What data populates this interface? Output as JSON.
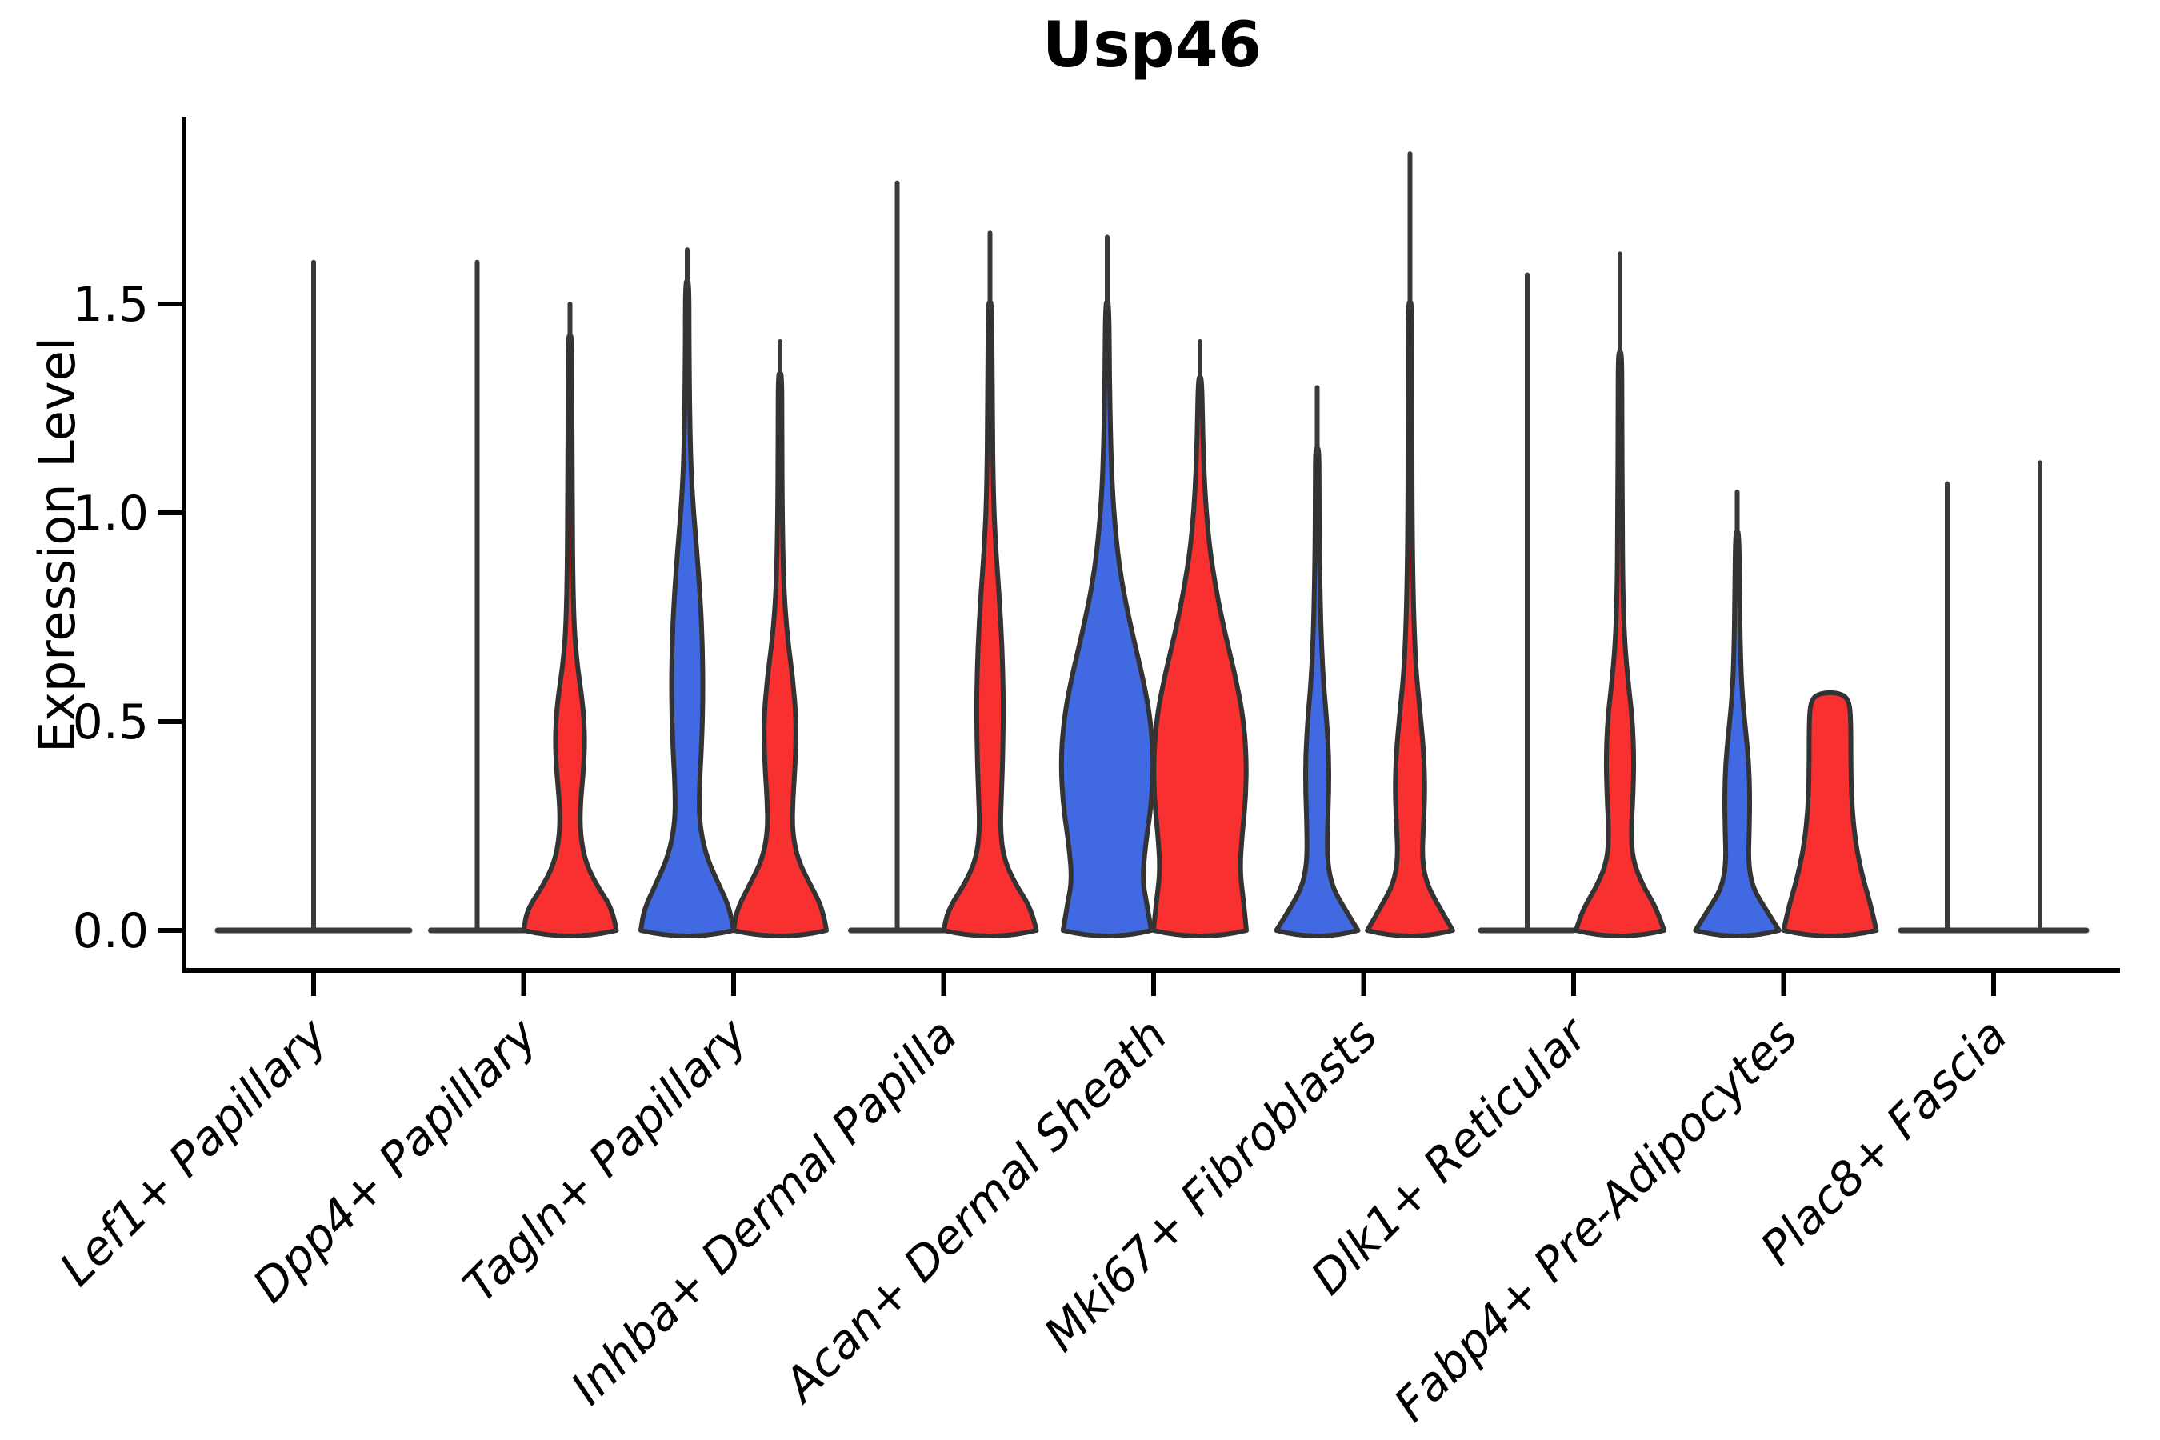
{
  "title": "Usp46",
  "ylabel": "Expression Level",
  "colors": {
    "blue": "#4169E1",
    "red": "#F93030",
    "outline": "#333333",
    "collapsed_line": "#3a3a3a",
    "axis": "#000000",
    "background": "#ffffff"
  },
  "chart_data": {
    "type": "violin",
    "title": "Usp46",
    "xlabel": "",
    "ylabel": "Expression Level",
    "ylim": [
      -0.1,
      1.95
    ],
    "yticks": [
      0.0,
      0.5,
      1.0,
      1.5
    ],
    "ytick_labels": [
      "0.0",
      "0.5",
      "1.0",
      "1.5"
    ],
    "grid": false,
    "legend": "none",
    "categories": [
      "Lef1+ Papillary",
      "Dpp4+ Papillary",
      "Tagln+ Papillary",
      "Inhba+ Dermal Papilla",
      "Acan+ Dermal Sheath",
      "Mki67+ Fibroblasts",
      "Dlk1+ Reticular",
      "Fabp4+ Pre-Adipocytes",
      "Plac8+ Fascia"
    ],
    "series_note": "two conditions per category shown as paired violins (blue = left violin, red = right violin); profile = [expression_value, relative_half_width]; max = top of vertical tail line",
    "groups": [
      {
        "label": "Lef1+ Papillary",
        "violins": [
          {
            "hue": "single",
            "collapsed": true,
            "wide": true,
            "max": 1.6
          }
        ]
      },
      {
        "label": "Dpp4+ Papillary",
        "violins": [
          {
            "hue": "blue",
            "collapsed": true,
            "max": 1.6
          },
          {
            "hue": "red",
            "max": 1.5,
            "profile": [
              [
                0,
                1.0
              ],
              [
                0.05,
                0.92
              ],
              [
                0.1,
                0.62
              ],
              [
                0.16,
                0.34
              ],
              [
                0.23,
                0.22
              ],
              [
                0.3,
                0.22
              ],
              [
                0.38,
                0.29
              ],
              [
                0.46,
                0.32
              ],
              [
                0.54,
                0.28
              ],
              [
                0.63,
                0.16
              ],
              [
                0.72,
                0.09
              ],
              [
                0.85,
                0.06
              ],
              [
                1.05,
                0.05
              ],
              [
                1.3,
                0.04
              ],
              [
                1.42,
                0.04
              ]
            ]
          }
        ]
      },
      {
        "label": "Tagln+ Papillary",
        "violins": [
          {
            "hue": "blue",
            "max": 1.63,
            "profile": [
              [
                0,
                1.0
              ],
              [
                0.05,
                0.93
              ],
              [
                0.11,
                0.68
              ],
              [
                0.18,
                0.4
              ],
              [
                0.26,
                0.26
              ],
              [
                0.34,
                0.26
              ],
              [
                0.44,
                0.31
              ],
              [
                0.56,
                0.34
              ],
              [
                0.68,
                0.33
              ],
              [
                0.8,
                0.28
              ],
              [
                0.92,
                0.2
              ],
              [
                1.04,
                0.11
              ],
              [
                1.18,
                0.06
              ],
              [
                1.4,
                0.04
              ],
              [
                1.55,
                0.04
              ]
            ]
          },
          {
            "hue": "red",
            "max": 1.41,
            "profile": [
              [
                0,
                1.0
              ],
              [
                0.05,
                0.93
              ],
              [
                0.11,
                0.65
              ],
              [
                0.17,
                0.38
              ],
              [
                0.24,
                0.26
              ],
              [
                0.32,
                0.28
              ],
              [
                0.4,
                0.33
              ],
              [
                0.5,
                0.35
              ],
              [
                0.6,
                0.28
              ],
              [
                0.7,
                0.16
              ],
              [
                0.82,
                0.08
              ],
              [
                0.98,
                0.05
              ],
              [
                1.2,
                0.04
              ],
              [
                1.33,
                0.04
              ]
            ]
          }
        ]
      },
      {
        "label": "Inhba+ Dermal Papilla",
        "violins": [
          {
            "hue": "blue",
            "collapsed": true,
            "max": 1.79
          },
          {
            "hue": "red",
            "max": 1.67,
            "profile": [
              [
                0,
                1.0
              ],
              [
                0.05,
                0.9
              ],
              [
                0.11,
                0.55
              ],
              [
                0.17,
                0.3
              ],
              [
                0.24,
                0.22
              ],
              [
                0.33,
                0.25
              ],
              [
                0.44,
                0.28
              ],
              [
                0.56,
                0.29
              ],
              [
                0.68,
                0.26
              ],
              [
                0.8,
                0.2
              ],
              [
                0.92,
                0.12
              ],
              [
                1.05,
                0.07
              ],
              [
                1.25,
                0.05
              ],
              [
                1.5,
                0.04
              ]
            ]
          }
        ]
      },
      {
        "label": "Acan+ Dermal Sheath",
        "violins": [
          {
            "hue": "blue",
            "max": 1.66,
            "profile": [
              [
                0,
                0.95
              ],
              [
                0.06,
                0.86
              ],
              [
                0.12,
                0.76
              ],
              [
                0.2,
                0.82
              ],
              [
                0.3,
                0.95
              ],
              [
                0.4,
                1.0
              ],
              [
                0.5,
                0.94
              ],
              [
                0.6,
                0.78
              ],
              [
                0.72,
                0.52
              ],
              [
                0.84,
                0.3
              ],
              [
                0.96,
                0.17
              ],
              [
                1.1,
                0.09
              ],
              [
                1.3,
                0.05
              ],
              [
                1.5,
                0.04
              ]
            ]
          },
          {
            "hue": "red",
            "max": 1.41,
            "profile": [
              [
                0,
                1.0
              ],
              [
                0.07,
                0.94
              ],
              [
                0.14,
                0.86
              ],
              [
                0.22,
                0.9
              ],
              [
                0.32,
                0.99
              ],
              [
                0.42,
                1.0
              ],
              [
                0.52,
                0.92
              ],
              [
                0.62,
                0.74
              ],
              [
                0.72,
                0.52
              ],
              [
                0.82,
                0.34
              ],
              [
                0.92,
                0.2
              ],
              [
                1.04,
                0.11
              ],
              [
                1.18,
                0.06
              ],
              [
                1.32,
                0.04
              ]
            ]
          }
        ]
      },
      {
        "label": "Mki67+ Fibroblasts",
        "violins": [
          {
            "hue": "blue",
            "max": 1.3,
            "profile": [
              [
                0,
                0.88
              ],
              [
                0.05,
                0.6
              ],
              [
                0.1,
                0.34
              ],
              [
                0.16,
                0.22
              ],
              [
                0.24,
                0.22
              ],
              [
                0.33,
                0.25
              ],
              [
                0.42,
                0.25
              ],
              [
                0.51,
                0.2
              ],
              [
                0.6,
                0.13
              ],
              [
                0.72,
                0.08
              ],
              [
                0.88,
                0.05
              ],
              [
                1.05,
                0.04
              ],
              [
                1.15,
                0.04
              ]
            ]
          },
          {
            "hue": "red",
            "max": 1.86,
            "profile": [
              [
                0,
                0.92
              ],
              [
                0.05,
                0.66
              ],
              [
                0.11,
                0.36
              ],
              [
                0.17,
                0.26
              ],
              [
                0.25,
                0.29
              ],
              [
                0.33,
                0.32
              ],
              [
                0.42,
                0.3
              ],
              [
                0.52,
                0.22
              ],
              [
                0.62,
                0.13
              ],
              [
                0.75,
                0.08
              ],
              [
                0.92,
                0.05
              ],
              [
                1.2,
                0.04
              ],
              [
                1.5,
                0.04
              ]
            ]
          }
        ]
      },
      {
        "label": "Dlk1+ Reticular",
        "violins": [
          {
            "hue": "blue",
            "collapsed": true,
            "max": 1.57
          },
          {
            "hue": "red",
            "max": 1.62,
            "profile": [
              [
                0,
                0.95
              ],
              [
                0.05,
                0.8
              ],
              [
                0.11,
                0.48
              ],
              [
                0.17,
                0.27
              ],
              [
                0.24,
                0.24
              ],
              [
                0.32,
                0.28
              ],
              [
                0.41,
                0.3
              ],
              [
                0.5,
                0.27
              ],
              [
                0.59,
                0.18
              ],
              [
                0.69,
                0.1
              ],
              [
                0.82,
                0.06
              ],
              [
                1.0,
                0.05
              ],
              [
                1.25,
                0.04
              ],
              [
                1.38,
                0.04
              ]
            ]
          }
        ]
      },
      {
        "label": "Fabp4+ Pre-Adipocytes",
        "violins": [
          {
            "hue": "blue",
            "max": 1.05,
            "profile": [
              [
                0,
                0.9
              ],
              [
                0.05,
                0.62
              ],
              [
                0.1,
                0.34
              ],
              [
                0.16,
                0.24
              ],
              [
                0.24,
                0.26
              ],
              [
                0.32,
                0.27
              ],
              [
                0.4,
                0.25
              ],
              [
                0.48,
                0.18
              ],
              [
                0.56,
                0.11
              ],
              [
                0.66,
                0.07
              ],
              [
                0.8,
                0.05
              ],
              [
                0.95,
                0.04
              ]
            ]
          },
          {
            "hue": "red",
            "max": 0.56,
            "profile": [
              [
                0,
                1.0
              ],
              [
                0.06,
                0.88
              ],
              [
                0.12,
                0.72
              ],
              [
                0.19,
                0.58
              ],
              [
                0.26,
                0.5
              ],
              [
                0.33,
                0.46
              ],
              [
                0.4,
                0.45
              ],
              [
                0.47,
                0.45
              ],
              [
                0.52,
                0.44
              ],
              [
                0.55,
                0.4
              ],
              [
                0.565,
                0.28
              ]
            ]
          }
        ]
      },
      {
        "label": "Plac8+ Fascia",
        "violins": [
          {
            "hue": "blue",
            "collapsed": true,
            "max": 1.07
          },
          {
            "hue": "red",
            "collapsed": true,
            "max": 1.12
          }
        ]
      }
    ]
  }
}
